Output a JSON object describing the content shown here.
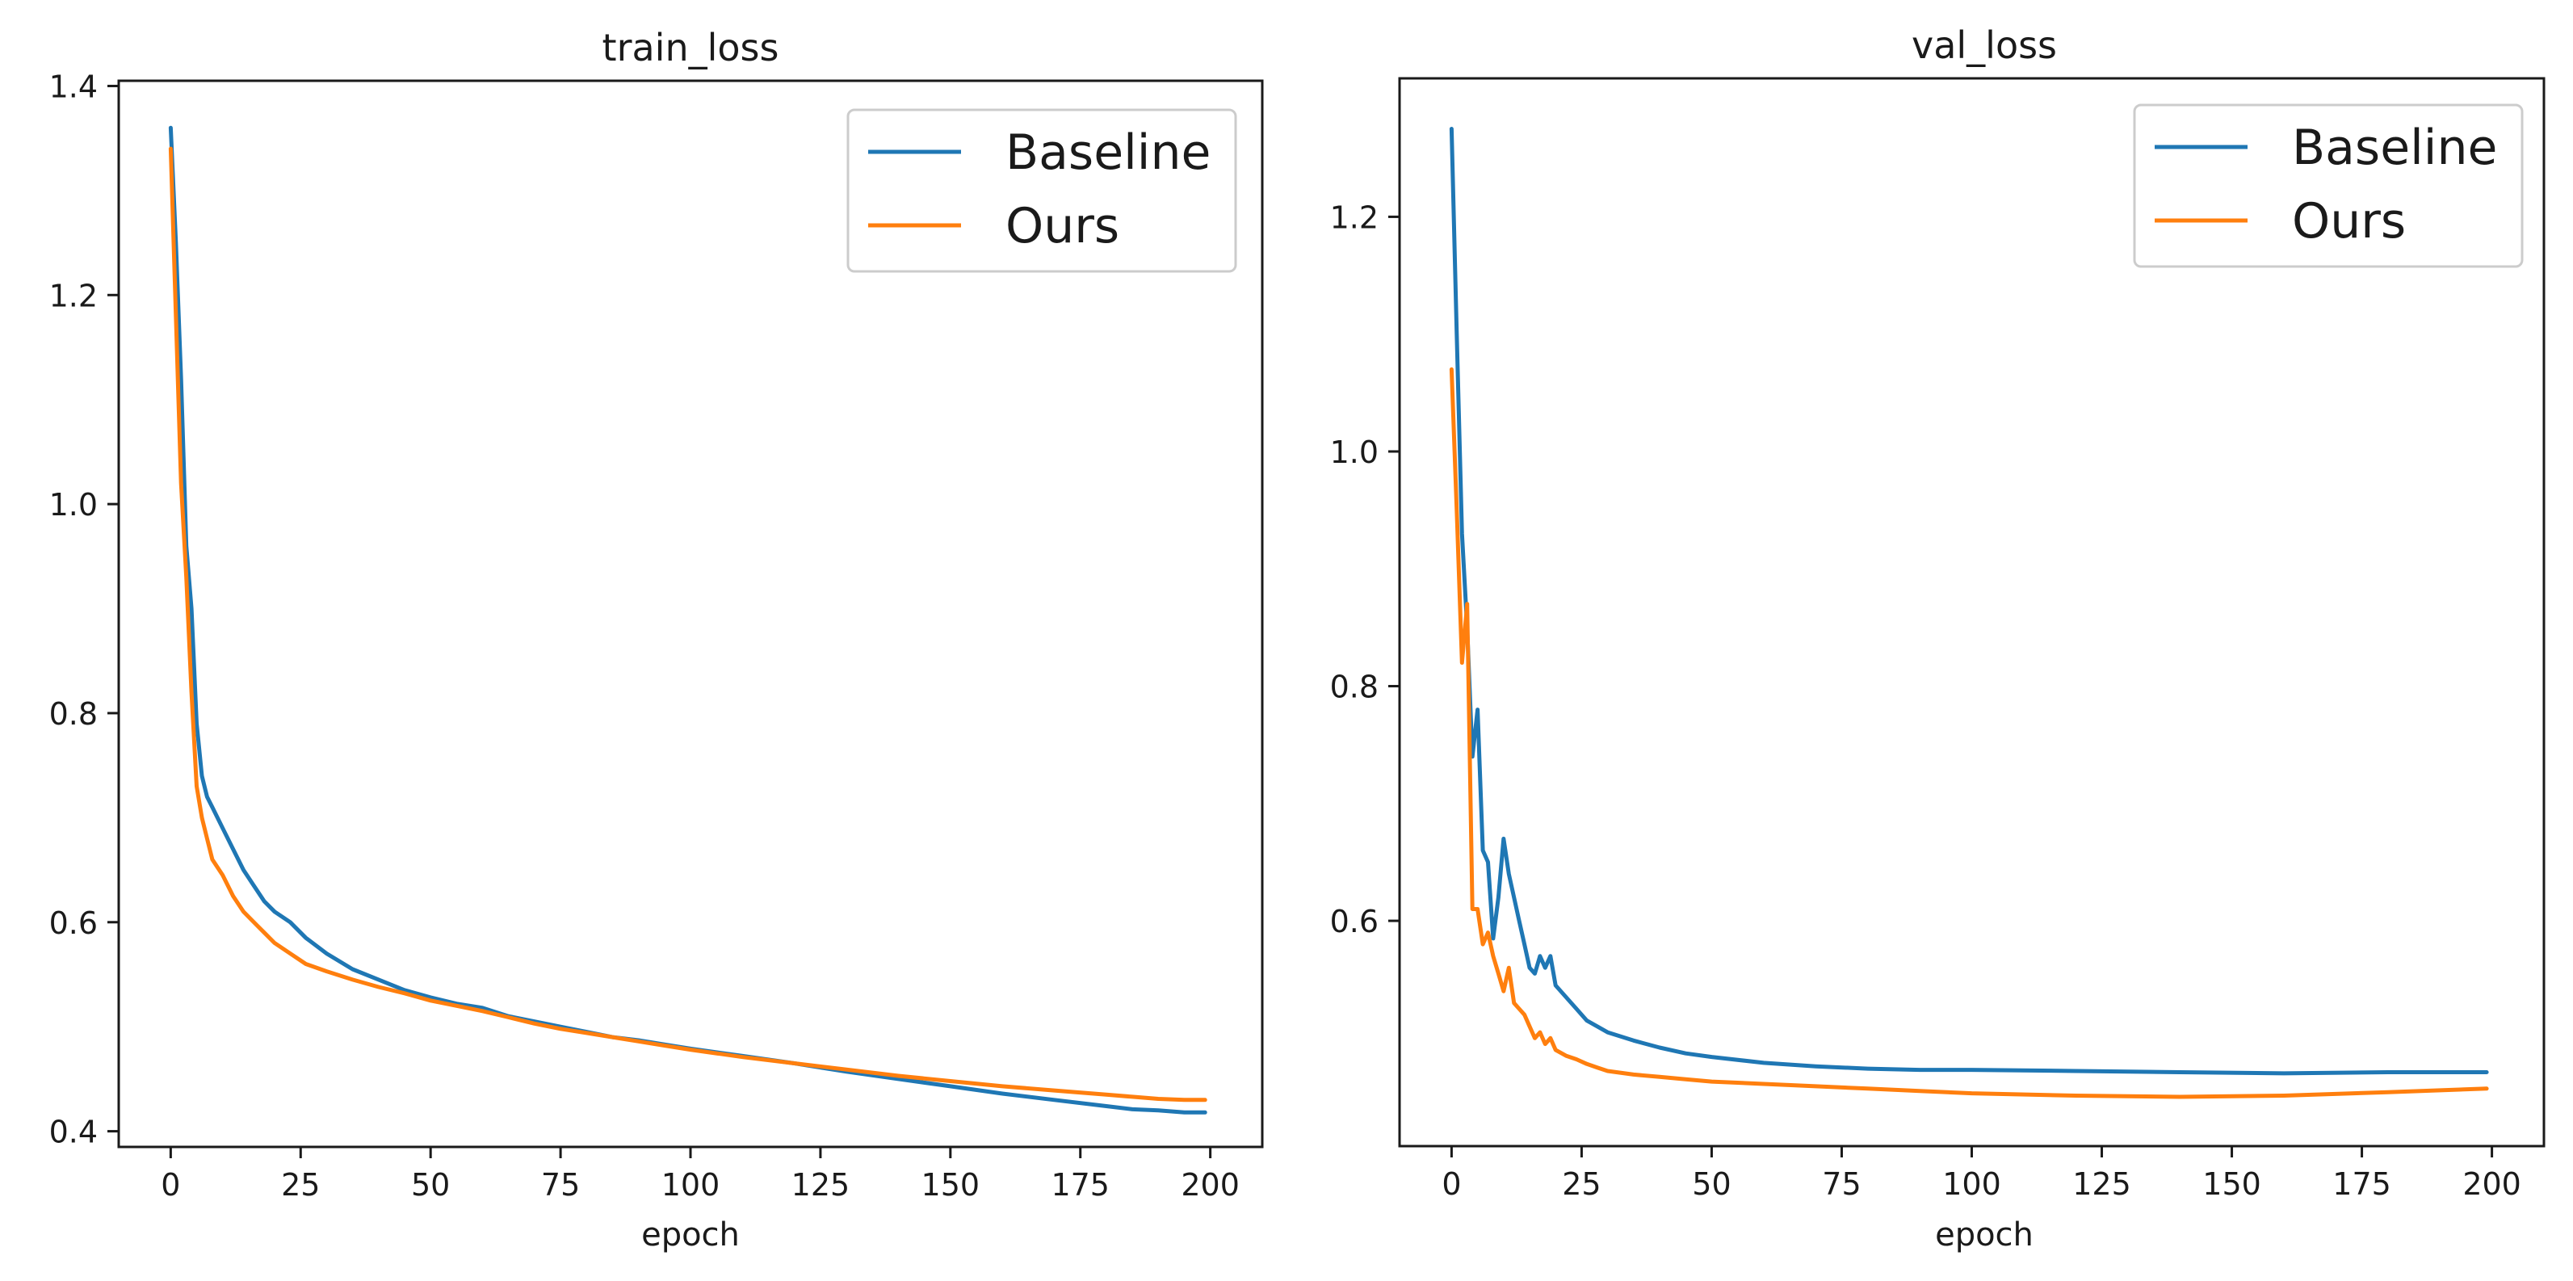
{
  "colors": {
    "baseline": "#1f77b4",
    "ours": "#ff7f0e"
  },
  "chart_data": [
    {
      "type": "line",
      "title": "train_loss",
      "xlabel": "epoch",
      "ylabel": "",
      "xlim": [
        -10,
        210
      ],
      "ylim": [
        0.385,
        1.405
      ],
      "xticks": [
        0,
        25,
        50,
        75,
        100,
        125,
        150,
        175,
        200
      ],
      "yticks": [
        0.4,
        0.6,
        0.8,
        1.0,
        1.2,
        1.4
      ],
      "ytick_labels": [
        "0.4",
        "0.6",
        "0.8",
        "1.0",
        "1.2",
        "1.4"
      ],
      "grid": false,
      "legend": "top-right",
      "series": [
        {
          "name": "Baseline",
          "x": [
            0,
            1,
            2,
            3,
            4,
            5,
            6,
            7,
            8,
            10,
            12,
            14,
            16,
            18,
            20,
            23,
            26,
            30,
            35,
            40,
            45,
            50,
            55,
            60,
            65,
            70,
            75,
            80,
            85,
            90,
            95,
            100,
            110,
            120,
            130,
            140,
            150,
            160,
            170,
            180,
            185,
            190,
            195,
            199
          ],
          "y": [
            1.36,
            1.25,
            1.12,
            0.96,
            0.9,
            0.79,
            0.74,
            0.72,
            0.71,
            0.69,
            0.67,
            0.65,
            0.635,
            0.62,
            0.61,
            0.6,
            0.585,
            0.57,
            0.555,
            0.545,
            0.535,
            0.528,
            0.522,
            0.518,
            0.51,
            0.505,
            0.5,
            0.495,
            0.49,
            0.487,
            0.483,
            0.479,
            0.472,
            0.465,
            0.457,
            0.45,
            0.443,
            0.436,
            0.43,
            0.424,
            0.421,
            0.42,
            0.418,
            0.418
          ]
        },
        {
          "name": "Ours",
          "x": [
            0,
            1,
            2,
            3,
            4,
            5,
            6,
            7,
            8,
            10,
            12,
            14,
            16,
            18,
            20,
            23,
            26,
            30,
            35,
            40,
            45,
            50,
            55,
            60,
            65,
            70,
            75,
            80,
            85,
            90,
            95,
            100,
            110,
            120,
            130,
            140,
            150,
            160,
            170,
            180,
            185,
            190,
            195,
            199
          ],
          "y": [
            1.34,
            1.18,
            1.02,
            0.93,
            0.82,
            0.73,
            0.7,
            0.68,
            0.66,
            0.645,
            0.625,
            0.61,
            0.6,
            0.59,
            0.58,
            0.57,
            0.56,
            0.553,
            0.545,
            0.538,
            0.532,
            0.525,
            0.52,
            0.515,
            0.509,
            0.503,
            0.498,
            0.494,
            0.49,
            0.486,
            0.482,
            0.478,
            0.471,
            0.465,
            0.459,
            0.453,
            0.448,
            0.443,
            0.439,
            0.435,
            0.433,
            0.431,
            0.43,
            0.43
          ]
        }
      ]
    },
    {
      "type": "line",
      "title": "val_loss",
      "xlabel": "epoch",
      "ylabel": "",
      "xlim": [
        -10,
        210
      ],
      "ylim": [
        0.408,
        1.318
      ],
      "xticks": [
        0,
        25,
        50,
        75,
        100,
        125,
        150,
        175,
        200
      ],
      "yticks": [
        0.6,
        0.8,
        1.0,
        1.2
      ],
      "ytick_labels": [
        "0.6",
        "0.8",
        "1.0",
        "1.2"
      ],
      "grid": false,
      "legend": "top-right",
      "series": [
        {
          "name": "Baseline",
          "x": [
            0,
            1,
            2,
            3,
            4,
            5,
            6,
            7,
            8,
            9,
            10,
            11,
            12,
            13,
            14,
            15,
            16,
            17,
            18,
            19,
            20,
            22,
            24,
            26,
            28,
            30,
            35,
            40,
            45,
            50,
            60,
            70,
            80,
            90,
            100,
            120,
            140,
            160,
            180,
            199
          ],
          "y": [
            1.275,
            1.1,
            0.93,
            0.85,
            0.74,
            0.78,
            0.66,
            0.65,
            0.585,
            0.62,
            0.67,
            0.64,
            0.62,
            0.6,
            0.58,
            0.56,
            0.555,
            0.57,
            0.56,
            0.57,
            0.545,
            0.535,
            0.525,
            0.515,
            0.51,
            0.505,
            0.498,
            0.492,
            0.487,
            0.484,
            0.479,
            0.476,
            0.474,
            0.473,
            0.473,
            0.472,
            0.471,
            0.47,
            0.471,
            0.471
          ]
        },
        {
          "name": "Ours",
          "x": [
            0,
            1,
            2,
            3,
            4,
            5,
            6,
            7,
            8,
            9,
            10,
            11,
            12,
            13,
            14,
            15,
            16,
            17,
            18,
            19,
            20,
            22,
            24,
            26,
            28,
            30,
            35,
            40,
            45,
            50,
            60,
            70,
            80,
            90,
            100,
            120,
            140,
            160,
            180,
            199
          ],
          "y": [
            1.07,
            0.95,
            0.82,
            0.87,
            0.61,
            0.61,
            0.58,
            0.59,
            0.57,
            0.555,
            0.54,
            0.56,
            0.53,
            0.525,
            0.52,
            0.51,
            0.5,
            0.505,
            0.495,
            0.5,
            0.49,
            0.485,
            0.482,
            0.478,
            0.475,
            0.472,
            0.469,
            0.467,
            0.465,
            0.463,
            0.461,
            0.459,
            0.457,
            0.455,
            0.453,
            0.451,
            0.45,
            0.451,
            0.454,
            0.457
          ]
        }
      ]
    }
  ]
}
